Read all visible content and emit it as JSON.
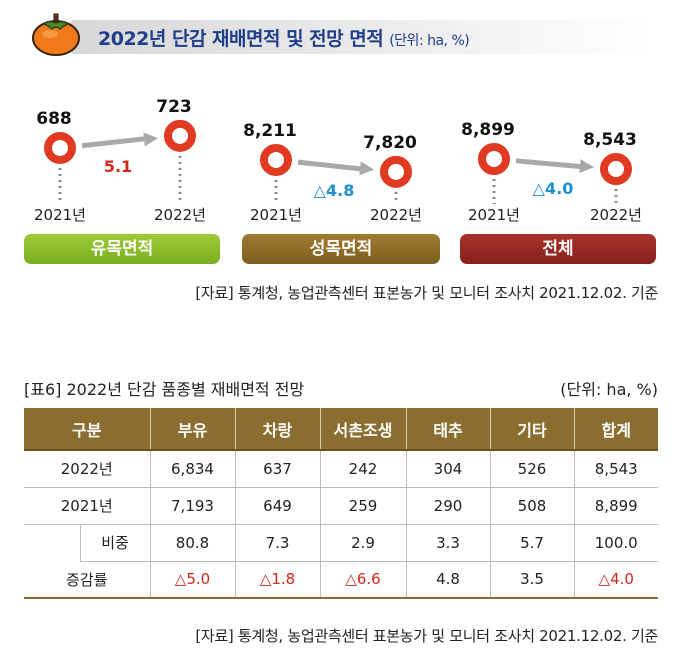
{
  "header": {
    "title": "2022년 단감 재배면적 및 전망 면적",
    "unit": "(단위: ha, %)"
  },
  "chart_data": {
    "type": "line",
    "x": [
      "2021년",
      "2022년"
    ],
    "series": [
      {
        "name": "유목면적",
        "values": [
          688,
          723
        ],
        "change": "5.1",
        "change_color": "#d2261d"
      },
      {
        "name": "성목면적",
        "values": [
          8211,
          7820
        ],
        "change": "△4.8",
        "change_color": "#1e8fd0"
      },
      {
        "name": "전체",
        "values": [
          8899,
          8543
        ],
        "change": "△4.0",
        "change_color": "#1e8fd0"
      }
    ],
    "value_labels": [
      [
        "688",
        "723"
      ],
      [
        "8,211",
        "7,820"
      ],
      [
        "8,899",
        "8,543"
      ]
    ]
  },
  "categories": [
    "유목면적",
    "성목면적",
    "전체"
  ],
  "source": "[자료] 통계청, 농업관측센터 표본농가 및 모니터 조사치 2021.12.02. 기준",
  "table": {
    "caption": "[표6] 2022년 단감 품종별 재배면적 전망",
    "unit": "(단위: ha, %)",
    "headers": [
      "구분",
      "부유",
      "차랑",
      "서촌조생",
      "태추",
      "기타",
      "합계"
    ],
    "rows": [
      {
        "label": "2022년",
        "values": [
          "6,834",
          "637",
          "242",
          "304",
          "526",
          "8,543"
        ]
      },
      {
        "label": "2021년",
        "values": [
          "7,193",
          "649",
          "259",
          "290",
          "508",
          "8,899"
        ]
      },
      {
        "label": "비중",
        "values": [
          "80.8",
          "7.3",
          "2.9",
          "3.3",
          "5.7",
          "100.0"
        ]
      },
      {
        "label": "증감률",
        "values": [
          "△5.0",
          "△1.8",
          "△6.6",
          "4.8",
          "3.5",
          "△4.0"
        ]
      }
    ]
  },
  "colors": {
    "marker_red": "#e03a22",
    "arrow_gray": "#a9a9a9",
    "decrease_red": "#d2261d"
  }
}
